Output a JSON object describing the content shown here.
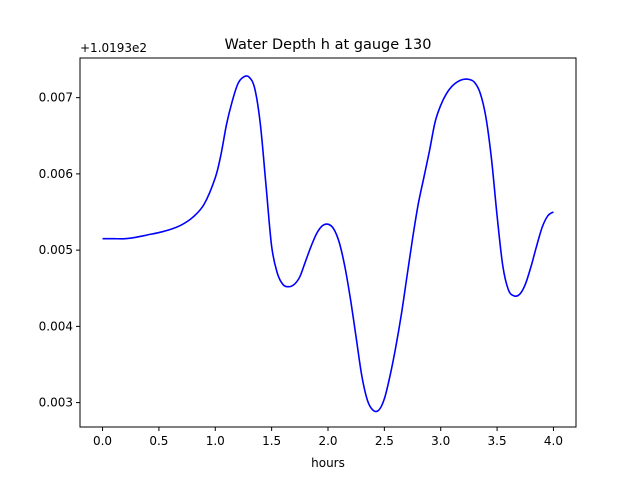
{
  "chart_data": {
    "type": "line",
    "title": "Water Depth h at gauge 130",
    "xlabel": "hours",
    "ylabel": "",
    "y_offset_label": "+1.0193e2",
    "xlim": [
      -0.2,
      4.2
    ],
    "ylim": [
      0.00268,
      0.00752
    ],
    "xticks": [
      0.0,
      0.5,
      1.0,
      1.5,
      2.0,
      2.5,
      3.0,
      3.5,
      4.0
    ],
    "xtick_labels": [
      "0.0",
      "0.5",
      "1.0",
      "1.5",
      "2.0",
      "2.5",
      "3.0",
      "3.5",
      "4.0"
    ],
    "yticks": [
      0.003,
      0.004,
      0.005,
      0.006,
      0.007
    ],
    "ytick_labels": [
      "0.003",
      "0.004",
      "0.005",
      "0.006",
      "0.007"
    ],
    "grid": false,
    "series": [
      {
        "color": "#0000ff",
        "x": [
          0.0,
          0.1,
          0.2,
          0.3,
          0.4,
          0.5,
          0.6,
          0.7,
          0.8,
          0.9,
          1.0,
          1.05,
          1.1,
          1.15,
          1.2,
          1.25,
          1.3,
          1.35,
          1.4,
          1.45,
          1.5,
          1.55,
          1.6,
          1.65,
          1.7,
          1.75,
          1.8,
          1.85,
          1.9,
          1.95,
          2.0,
          2.05,
          2.1,
          2.15,
          2.2,
          2.25,
          2.3,
          2.35,
          2.4,
          2.45,
          2.5,
          2.55,
          2.6,
          2.65,
          2.7,
          2.75,
          2.8,
          2.85,
          2.9,
          2.95,
          3.0,
          3.05,
          3.1,
          3.15,
          3.2,
          3.25,
          3.3,
          3.35,
          3.4,
          3.45,
          3.5,
          3.55,
          3.6,
          3.65,
          3.7,
          3.75,
          3.8,
          3.85,
          3.9,
          3.95,
          4.0
        ],
        "y": [
          0.00515,
          0.00515,
          0.00515,
          0.00517,
          0.0052,
          0.00523,
          0.00527,
          0.00533,
          0.00543,
          0.0056,
          0.00595,
          0.00625,
          0.00665,
          0.00695,
          0.00718,
          0.00727,
          0.00727,
          0.00712,
          0.00665,
          0.00585,
          0.00505,
          0.0047,
          0.00455,
          0.00452,
          0.00455,
          0.00465,
          0.00485,
          0.00505,
          0.00522,
          0.00532,
          0.00534,
          0.00528,
          0.0051,
          0.00478,
          0.00435,
          0.00385,
          0.00335,
          0.00303,
          0.0029,
          0.0029,
          0.00305,
          0.00335,
          0.00372,
          0.00415,
          0.00465,
          0.00515,
          0.0056,
          0.00595,
          0.0063,
          0.00668,
          0.0069,
          0.00705,
          0.00715,
          0.00721,
          0.00724,
          0.00724,
          0.0072,
          0.00706,
          0.00675,
          0.0062,
          0.00545,
          0.0048,
          0.00448,
          0.0044,
          0.00442,
          0.00455,
          0.00478,
          0.00505,
          0.0053,
          0.00545,
          0.0055
        ]
      }
    ]
  }
}
